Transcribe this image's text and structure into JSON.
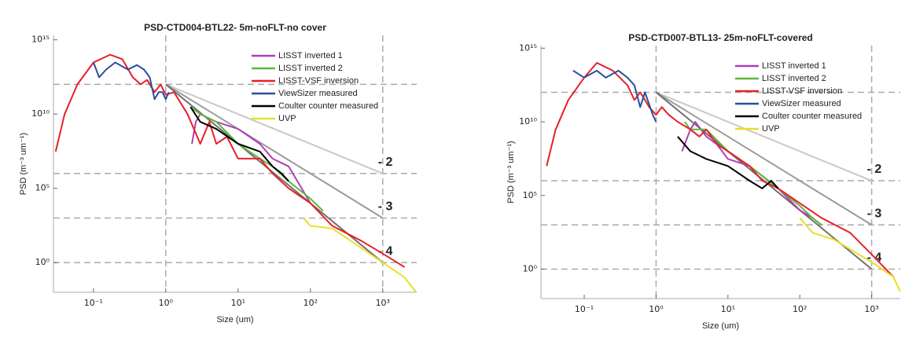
{
  "chart_data": [
    {
      "type": "line",
      "title": "PSD-CTD004-BTL22-  5m-noFLT-no cover",
      "x_label": "Size (um)",
      "y_label": "PSD (m⁻³ um⁻¹)",
      "log_x": true,
      "log_y": true,
      "xlim": [
        0.028,
        2950
      ],
      "ylim": [
        0.01,
        2000000000000000.0
      ],
      "xticks": [
        {
          "value": 0.1,
          "label": "10⁻¹"
        },
        {
          "value": 1,
          "label": "10⁰"
        },
        {
          "value": 10,
          "label": "10¹"
        },
        {
          "value": 100,
          "label": "10²"
        },
        {
          "value": 1000,
          "label": "10³"
        }
      ],
      "yticks": [
        {
          "value": 1,
          "label": "10⁰"
        },
        {
          "value": 100000,
          "label": "10⁵"
        },
        {
          "value": 10000000000,
          "label": "10¹⁰"
        },
        {
          "value": 1000000000000000,
          "label": "10¹⁵"
        }
      ],
      "hlines": [
        1000000000000,
        1000000,
        1000,
        1
      ],
      "vlines": [
        1,
        1000
      ],
      "slope_start": {
        "x": 1,
        "y": 1000000000000
      },
      "slopes": [
        {
          "label": "- 2",
          "x": 1000,
          "y": 1000000,
          "color": "#c8c8c8"
        },
        {
          "label": "- 3",
          "x": 1000,
          "y": 1000,
          "color": "#9a9a9a"
        },
        {
          "label": "- 4",
          "x": 1000,
          "y": 1,
          "color": "#707070"
        }
      ],
      "legend": "top-right",
      "series": [
        {
          "name": "LISST inverted 1",
          "color": "#b23db5",
          "x": [
            2.3,
            2.6,
            3,
            5,
            10,
            20,
            30,
            50,
            100
          ],
          "values": [
            100000000,
            3000000000,
            10000000000,
            3000000000,
            1000000000,
            100000000,
            10000000,
            3000000,
            10000
          ]
        },
        {
          "name": "LISST inverted 2",
          "color": "#5cb83a",
          "x": [
            2.2,
            3,
            5,
            10,
            20,
            30,
            50,
            100,
            150
          ],
          "values": [
            30000000000,
            10000000000,
            3000000000,
            100000000,
            10000000,
            3000000,
            300000,
            20000,
            3000
          ]
        },
        {
          "name": "LISST-VSF inversion",
          "color": "#e6202a",
          "x": [
            0.03,
            0.04,
            0.06,
            0.1,
            0.17,
            0.25,
            0.35,
            0.45,
            0.55,
            0.7,
            0.85,
            1,
            1.3,
            2,
            3,
            4,
            5,
            7,
            10,
            20,
            30,
            50,
            100,
            200,
            500,
            1000,
            2000
          ],
          "values": [
            30000000,
            10000000000,
            1000000000000,
            30000000000000,
            100000000000000,
            50000000000000,
            3000000000000,
            1000000000000,
            2000000000000,
            300000000000,
            1000000000000,
            200000000000,
            300000000000,
            10000000000,
            100000000,
            3000000000,
            100000000,
            300000000,
            10000000,
            10000000,
            1000000,
            100000,
            10000,
            300,
            30,
            4,
            0.5
          ]
        },
        {
          "name": "ViewSizer measured",
          "color": "#2a4f9e",
          "x": [
            0.1,
            0.12,
            0.15,
            0.2,
            0.3,
            0.4,
            0.5,
            0.6,
            0.7,
            0.8,
            0.9,
            1,
            1.1
          ],
          "values": [
            30000000000000,
            3000000000000,
            10000000000000,
            30000000000000,
            10000000000000,
            20000000000000,
            10000000000000,
            3000000000000,
            100000000000,
            300000000000,
            300000000000,
            100000000000,
            300000000000
          ]
        },
        {
          "name": "Coulter counter measured",
          "color": "#000000",
          "x": [
            2.2,
            3,
            5,
            10,
            20,
            30,
            40,
            50
          ],
          "values": [
            30000000000,
            3000000000,
            1000000000,
            100000000,
            30000000,
            3000000,
            1000000,
            300000
          ]
        },
        {
          "name": "UVP",
          "color": "#e8e02a",
          "x": [
            80,
            100,
            200,
            500,
            1000,
            2000,
            2900
          ],
          "values": [
            1000,
            300,
            200,
            10,
            1,
            0.1,
            0.01
          ]
        }
      ]
    },
    {
      "type": "line",
      "title": "PSD-CTD007-BTL13- 25m-noFLT-covered",
      "x_label": "Size (um)",
      "y_label": "PSD (m⁻³ um⁻¹)",
      "log_x": true,
      "log_y": true,
      "xlim": [
        0.025,
        2500
      ],
      "ylim": [
        0.01,
        1500000000000000.0
      ],
      "xticks": [
        {
          "value": 0.1,
          "label": "10⁻¹"
        },
        {
          "value": 1,
          "label": "10⁰"
        },
        {
          "value": 10,
          "label": "10¹"
        },
        {
          "value": 100,
          "label": "10²"
        },
        {
          "value": 1000,
          "label": "10³"
        }
      ],
      "yticks": [
        {
          "value": 1,
          "label": "10⁰"
        },
        {
          "value": 100000,
          "label": "10⁵"
        },
        {
          "value": 10000000000,
          "label": "10¹⁰"
        },
        {
          "value": 1000000000000000,
          "label": "10¹⁵"
        }
      ],
      "hlines": [
        1000000000000,
        1000000,
        1000,
        1
      ],
      "vlines": [
        1,
        1000
      ],
      "slope_start": {
        "x": 1,
        "y": 1000000000000
      },
      "slopes": [
        {
          "label": "- 2",
          "x": 1000,
          "y": 1000000,
          "color": "#c8c8c8"
        },
        {
          "label": "- 3",
          "x": 1000,
          "y": 1000,
          "color": "#9a9a9a"
        },
        {
          "label": "- 4",
          "x": 1000,
          "y": 1,
          "color": "#707070"
        }
      ],
      "legend": "top-right",
      "series": [
        {
          "name": "LISST inverted 1",
          "color": "#b23db5",
          "x": [
            2.3,
            3,
            3.5,
            5,
            7,
            10,
            20,
            50,
            100,
            150,
            200
          ],
          "values": [
            100000000,
            3000000000,
            10000000000,
            1000000000,
            300000000,
            30000000,
            10000000,
            300000,
            10000,
            3000,
            1000
          ]
        },
        {
          "name": "LISST inverted 2",
          "color": "#5cb83a",
          "x": [
            2.5,
            3,
            5,
            10,
            20,
            50,
            100,
            150,
            200
          ],
          "values": [
            10000000000,
            3000000000,
            3000000000,
            100000000,
            10000000,
            300000,
            20000,
            3000,
            1000
          ]
        },
        {
          "name": "LISST-VSF inversion",
          "color": "#e6202a",
          "x": [
            0.03,
            0.04,
            0.06,
            0.1,
            0.15,
            0.25,
            0.4,
            0.5,
            0.6,
            0.7,
            0.8,
            1,
            1.2,
            1.5,
            2,
            3,
            4,
            5,
            7,
            10,
            20,
            30,
            50,
            100,
            200,
            500,
            1000,
            2000
          ],
          "values": [
            10000000,
            3000000000,
            300000000000,
            10000000000000,
            100000000000000,
            30000000000000,
            3000000000000,
            300000000000,
            1000000000000,
            300000000000,
            100000000000,
            30000000000,
            100000000000,
            30000000000,
            10000000000,
            3000000000,
            1000000000,
            3000000000,
            300000000,
            100000000,
            10000000,
            1000000,
            300000,
            30000,
            3000,
            300,
            10,
            0.3
          ]
        },
        {
          "name": "ViewSizer measured",
          "color": "#2a4f9e",
          "x": [
            0.07,
            0.1,
            0.15,
            0.2,
            0.3,
            0.4,
            0.5,
            0.6,
            0.7,
            0.9,
            1
          ],
          "values": [
            30000000000000,
            10000000000000,
            30000000000000,
            10000000000000,
            30000000000000,
            10000000000000,
            3000000000000,
            100000000000,
            1000000000000,
            30000000000,
            10000000000
          ]
        },
        {
          "name": "Coulter counter measured",
          "color": "#000000",
          "x": [
            2,
            3,
            5,
            10,
            20,
            30,
            40,
            50
          ],
          "values": [
            1000000000,
            100000000,
            30000000,
            10000000,
            1000000,
            300000,
            1000000,
            300000
          ]
        },
        {
          "name": "UVP",
          "color": "#e8e02a",
          "x": [
            100,
            150,
            300,
            1000,
            2000,
            2500
          ],
          "values": [
            3000,
            300,
            100,
            3,
            0.3,
            0.03
          ]
        }
      ]
    }
  ]
}
